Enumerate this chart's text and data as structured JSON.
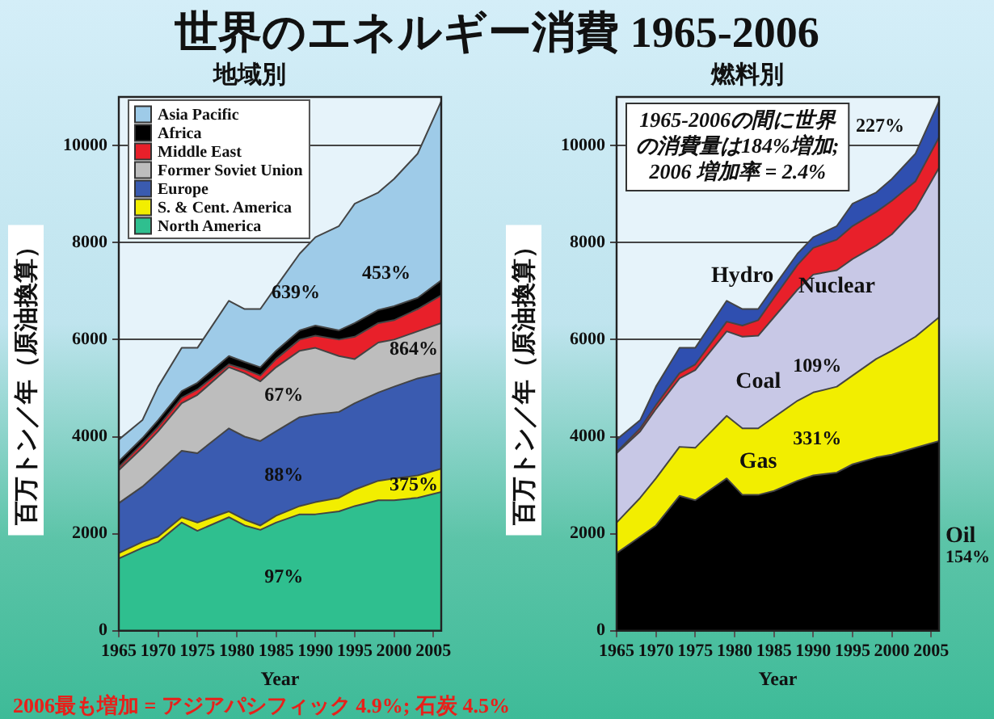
{
  "chart_data": [
    {
      "type": "area",
      "title": "世界のエネルギー消費 1965-2006",
      "subtitle": "地域別",
      "xlabel": "Year",
      "ylabel": "百万トン／年（原油換算）",
      "stacked": true,
      "x": [
        1965,
        1968,
        1970,
        1973,
        1975,
        1979,
        1981,
        1983,
        1985,
        1988,
        1990,
        1993,
        1995,
        1998,
        2000,
        2003,
        2006
      ],
      "series": [
        {
          "name": "North America",
          "color": "#2fbf8f",
          "values": [
            1490,
            1710,
            1830,
            2230,
            2060,
            2340,
            2170,
            2080,
            2230,
            2400,
            2400,
            2460,
            2570,
            2690,
            2690,
            2740,
            2860
          ]
        },
        {
          "name": "S. & Cent. America",
          "color": "#f2ee00",
          "values": [
            110,
            120,
            110,
            110,
            170,
            120,
            120,
            90,
            140,
            170,
            250,
            280,
            340,
            400,
            450,
            460,
            480
          ]
        },
        {
          "name": "Europe",
          "color": "#3a5bb0",
          "values": [
            1030,
            1140,
            1320,
            1370,
            1430,
            1710,
            1710,
            1740,
            1740,
            1830,
            1810,
            1770,
            1780,
            1820,
            1890,
            2000,
            1970
          ]
        },
        {
          "name": "Former Soviet Union",
          "color": "#bdbdbd",
          "values": [
            680,
            800,
            850,
            980,
            1200,
            1260,
            1310,
            1230,
            1320,
            1370,
            1370,
            1150,
            910,
            1030,
            970,
            970,
            1030
          ]
        },
        {
          "name": "Middle East",
          "color": "#e8202a",
          "values": [
            60,
            90,
            90,
            110,
            110,
            60,
            80,
            120,
            170,
            230,
            250,
            340,
            460,
            400,
            400,
            460,
            570
          ]
        },
        {
          "name": "Africa",
          "color": "#000000",
          "values": [
            120,
            110,
            140,
            140,
            140,
            170,
            150,
            170,
            170,
            190,
            210,
            190,
            280,
            270,
            290,
            230,
            310
          ]
        },
        {
          "name": "Asia Pacific",
          "color": "#9ecbe8",
          "values": [
            450,
            370,
            690,
            890,
            720,
            1140,
            1090,
            1200,
            1320,
            1580,
            1820,
            2150,
            2460,
            2420,
            2620,
            2970,
            3690
          ]
        }
      ],
      "xlim": [
        1965,
        2006
      ],
      "xticks": [
        1965,
        1970,
        1975,
        1980,
        1985,
        1990,
        1995,
        2000,
        2005
      ],
      "ylim": [
        0,
        11000
      ],
      "yticks": [
        0,
        2000,
        4000,
        6000,
        8000,
        10000
      ],
      "grid": "y",
      "legend": "top left",
      "annotations": [
        "2006最も増加 = アジアパシフィック 4.9%; 石炭 4.5%",
        "639%",
        "453%",
        "864%",
        "67%",
        "88%",
        "375%",
        "97%"
      ]
    },
    {
      "type": "area",
      "subtitle": "燃料別",
      "xlabel": "Year",
      "ylabel": "百万トン／年（原油換算）",
      "stacked": true,
      "x": [
        1965,
        1968,
        1970,
        1973,
        1975,
        1979,
        1981,
        1983,
        1985,
        1988,
        1990,
        1993,
        1995,
        1998,
        2000,
        2003,
        2006
      ],
      "series": [
        {
          "name": "Oil",
          "color": "#000000",
          "values": [
            1600,
            1940,
            2170,
            2780,
            2690,
            3140,
            2800,
            2800,
            2880,
            3090,
            3200,
            3260,
            3430,
            3570,
            3630,
            3770,
            3910
          ]
        },
        {
          "name": "Gas",
          "color": "#f2ee00",
          "values": [
            630,
            800,
            970,
            1010,
            1080,
            1290,
            1370,
            1370,
            1520,
            1650,
            1710,
            1770,
            1830,
            2030,
            2140,
            2290,
            2550
          ]
        },
        {
          "name": "Coal",
          "color": "#c8c8e6",
          "values": [
            1430,
            1370,
            1430,
            1410,
            1600,
            1740,
            1890,
            1910,
            2060,
            2290,
            2430,
            2400,
            2400,
            2340,
            2400,
            2630,
            3080
          ]
        },
        {
          "name": "Nuclear",
          "color": "#e8202a",
          "values": [
            20,
            60,
            80,
            110,
            120,
            200,
            230,
            320,
            400,
            510,
            550,
            630,
            680,
            690,
            690,
            570,
            630
          ]
        },
        {
          "name": "Hydro",
          "color": "#2f4fb0",
          "values": [
            260,
            170,
            380,
            520,
            340,
            430,
            340,
            230,
            230,
            230,
            220,
            280,
            460,
            400,
            450,
            570,
            740
          ]
        }
      ],
      "xlim": [
        1965,
        2006
      ],
      "xticks": [
        1965,
        1970,
        1975,
        1980,
        1985,
        1990,
        1995,
        2000,
        2005
      ],
      "ylim": [
        0,
        11000
      ],
      "yticks": [
        0,
        2000,
        4000,
        6000,
        8000,
        10000
      ],
      "grid": "y",
      "annotations": [
        "1965-2006の間に世界の消費量は184%増加;",
        "2006 増加率 = 2.4%",
        "227%",
        "109%",
        "331%",
        {
          "text": "154%",
          "x": 2006,
          "y": 1500
        }
      ]
    }
  ]
}
